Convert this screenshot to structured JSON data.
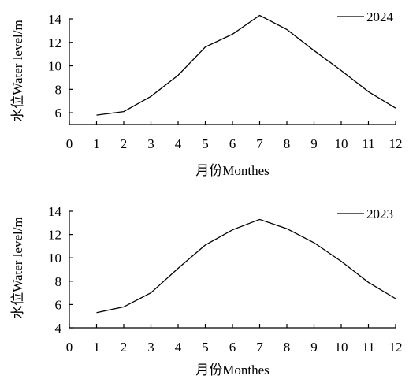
{
  "chart_data": [
    {
      "type": "line",
      "xlabel": "月份Monthes",
      "ylabel": "水位Water level/m",
      "xlim": [
        0,
        12
      ],
      "ylim": [
        5,
        14
      ],
      "xticks": [
        0,
        1,
        2,
        3,
        4,
        5,
        6,
        7,
        8,
        9,
        10,
        11,
        12
      ],
      "yticks": [
        6,
        8,
        10,
        12,
        14
      ],
      "legend": "top-right",
      "series": [
        {
          "name": "2024",
          "x": [
            1,
            2,
            3,
            4,
            5,
            6,
            7,
            8,
            9,
            10,
            11,
            12
          ],
          "values": [
            5.8,
            6.1,
            7.4,
            9.2,
            11.6,
            12.7,
            14.3,
            13.1,
            11.3,
            9.6,
            7.8,
            6.4
          ]
        }
      ]
    },
    {
      "type": "line",
      "xlabel": "月份Monthes",
      "ylabel": "水位Water level/m",
      "xlim": [
        0,
        12
      ],
      "ylim": [
        4,
        14
      ],
      "xticks": [
        0,
        1,
        2,
        3,
        4,
        5,
        6,
        7,
        8,
        9,
        10,
        11,
        12
      ],
      "yticks": [
        4,
        6,
        8,
        10,
        12,
        14
      ],
      "legend": "top-right",
      "series": [
        {
          "name": "2023",
          "x": [
            1,
            2,
            3,
            4,
            5,
            6,
            7,
            8,
            9,
            10,
            11,
            12
          ],
          "values": [
            5.3,
            5.8,
            7.0,
            9.1,
            11.1,
            12.4,
            13.3,
            12.5,
            11.3,
            9.7,
            7.9,
            6.5
          ]
        }
      ]
    }
  ]
}
